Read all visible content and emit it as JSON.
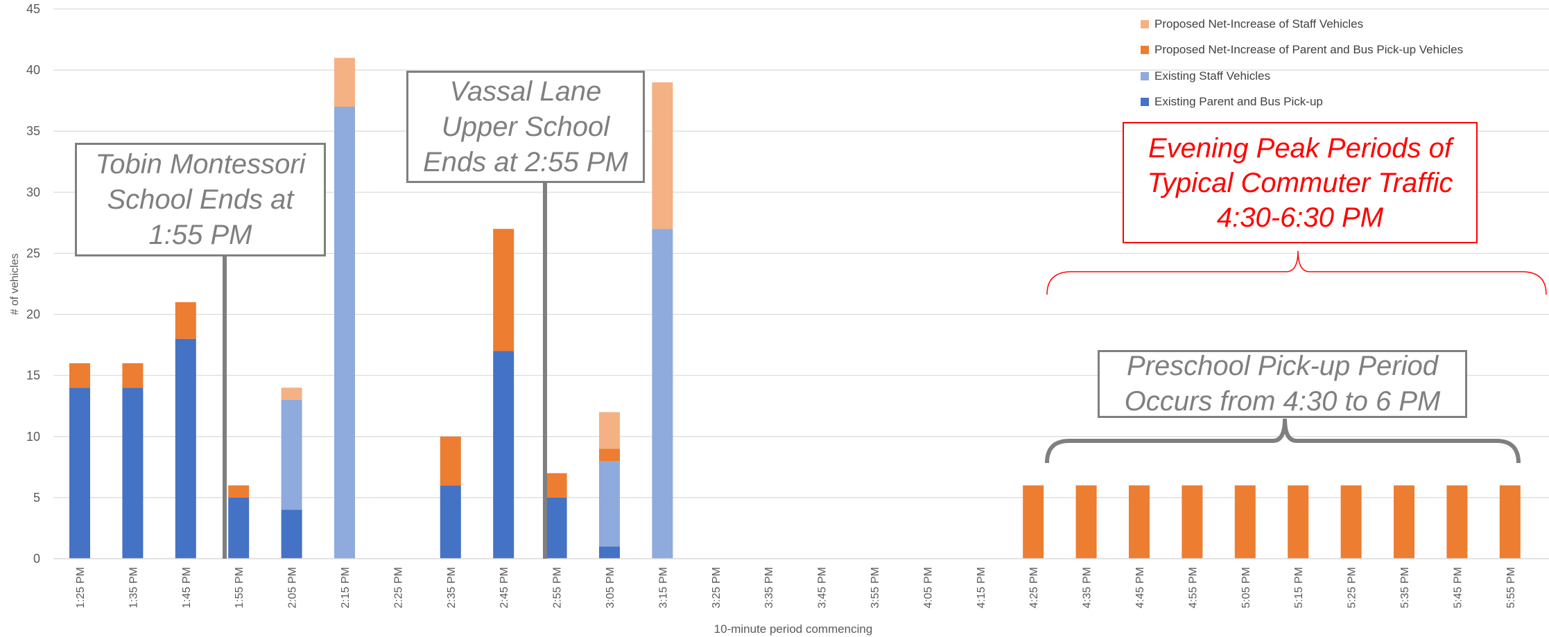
{
  "chart_data": {
    "type": "bar",
    "stacked": true,
    "xlabel": "10-minute period commencing",
    "ylabel": "# of vehicles",
    "ylim": [
      0,
      45
    ],
    "yticks": [
      0,
      5,
      10,
      15,
      20,
      25,
      30,
      35,
      40,
      45
    ],
    "grid": true,
    "legend_position": "top-right",
    "categories": [
      "1:25 PM",
      "1:35 PM",
      "1:45 PM",
      "1:55 PM",
      "2:05 PM",
      "2:15 PM",
      "2:25 PM",
      "2:35 PM",
      "2:45 PM",
      "2:55 PM",
      "3:05 PM",
      "3:15 PM",
      "3:25 PM",
      "3:35 PM",
      "3:45 PM",
      "3:55 PM",
      "4:05 PM",
      "4:15 PM",
      "4:25 PM",
      "4:35 PM",
      "4:45 PM",
      "4:55 PM",
      "5:05 PM",
      "5:15 PM",
      "5:25 PM",
      "5:35 PM",
      "5:45 PM",
      "5:55 PM"
    ],
    "series": [
      {
        "name": "Existing Parent and Bus Pick-up",
        "color": "#4472c4",
        "values": [
          14,
          14,
          18,
          5,
          4,
          0,
          0,
          6,
          17,
          5,
          1,
          0,
          0,
          0,
          0,
          0,
          0,
          0,
          0,
          0,
          0,
          0,
          0,
          0,
          0,
          0,
          0,
          0
        ]
      },
      {
        "name": "Existing Staff Vehicles",
        "color": "#8faadc",
        "values": [
          0,
          0,
          0,
          0,
          9,
          37,
          0,
          0,
          0,
          0,
          7,
          27,
          0,
          0,
          0,
          0,
          0,
          0,
          0,
          0,
          0,
          0,
          0,
          0,
          0,
          0,
          0,
          0
        ]
      },
      {
        "name": "Proposed Net-Increase of Parent and Bus Pick-up Vehicles",
        "color": "#ed7d31",
        "values": [
          2,
          2,
          3,
          1,
          0,
          0,
          0,
          4,
          10,
          2,
          1,
          0,
          0,
          0,
          0,
          0,
          0,
          0,
          6,
          6,
          6,
          6,
          6,
          6,
          6,
          6,
          6,
          6
        ]
      },
      {
        "name": "Proposed Net-Increase of Staff Vehicles",
        "color": "#f4b183",
        "values": [
          0,
          0,
          0,
          0,
          1,
          4,
          0,
          0,
          0,
          0,
          3,
          12,
          0,
          0,
          0,
          0,
          0,
          0,
          0,
          0,
          0,
          0,
          0,
          0,
          0,
          0,
          0,
          0
        ]
      }
    ],
    "legend_order": [
      3,
      2,
      1,
      0
    ],
    "annotations": [
      {
        "id": "tobin",
        "lines": [
          "Tobin Montessori",
          "School Ends at",
          "1:55 PM"
        ]
      },
      {
        "id": "vassal",
        "lines": [
          "Vassal Lane",
          "Upper School",
          "Ends at 2:55 PM"
        ]
      },
      {
        "id": "evening",
        "lines": [
          "Evening Peak Periods of",
          "Typical Commuter Traffic",
          "4:30-6:30 PM"
        ]
      },
      {
        "id": "preschool",
        "lines": [
          "Preschool Pick-up Period",
          "Occurs from 4:30 to 6 PM"
        ]
      }
    ]
  }
}
